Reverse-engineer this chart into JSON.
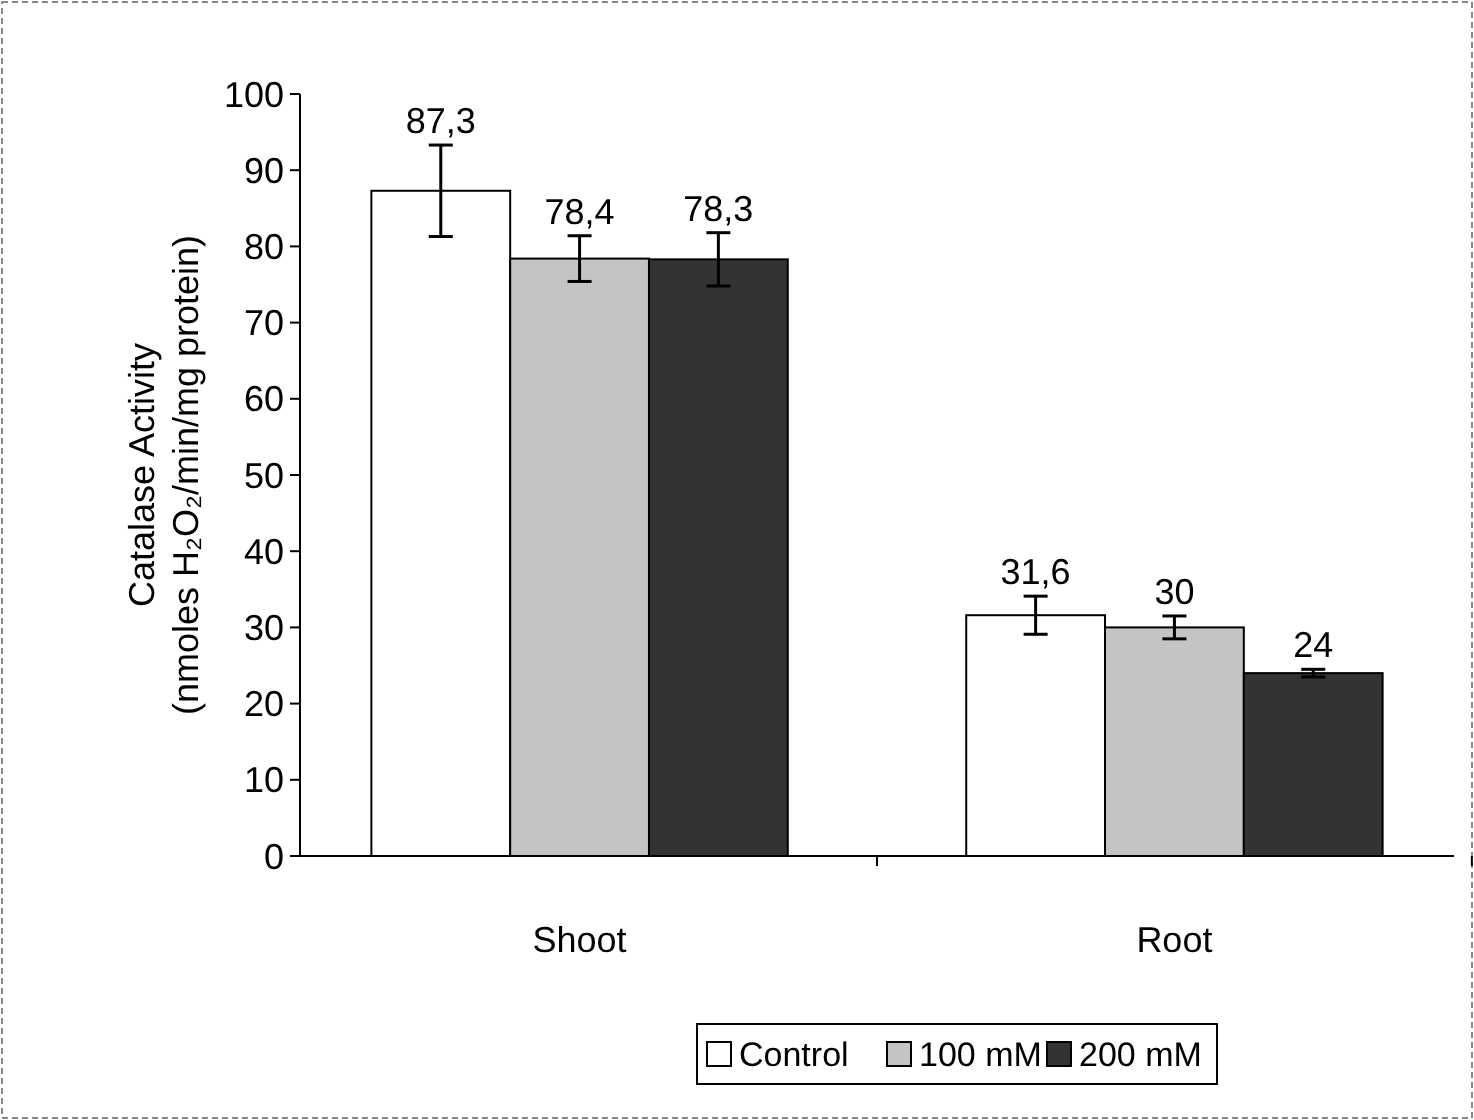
{
  "chart_data": {
    "type": "bar",
    "categories": [
      "Shoot",
      "Root"
    ],
    "ylabel": "Catalase Activity\n(nmoles H₂O₂/min/mg protein)",
    "ylim": [
      0,
      100
    ],
    "yticks": [
      0,
      10,
      20,
      30,
      40,
      50,
      60,
      70,
      80,
      90,
      100
    ],
    "grid": false,
    "legend": "bottom",
    "series": [
      {
        "name": "Control",
        "color": "#ffffff",
        "values": [
          87.3,
          31.6
        ],
        "errors": [
          6,
          2.5
        ],
        "value_labels": [
          "87,3",
          "31,6"
        ]
      },
      {
        "name": "100 mM",
        "color": "#c4c4c4",
        "values": [
          78.4,
          30
        ],
        "errors": [
          3,
          1.5
        ],
        "value_labels": [
          "78,4",
          "30"
        ]
      },
      {
        "name": "200 mM",
        "color": "#333333",
        "values": [
          78.3,
          24
        ],
        "errors": [
          3.5,
          0.5
        ],
        "value_labels": [
          "78,3",
          "24"
        ]
      }
    ]
  }
}
